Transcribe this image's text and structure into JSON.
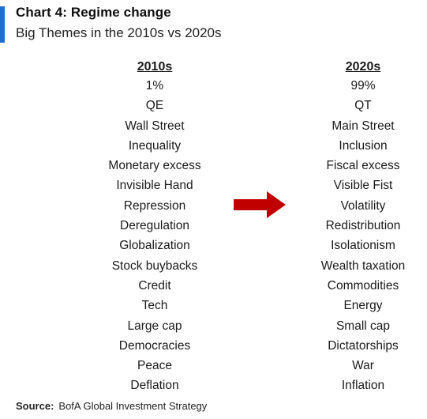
{
  "header": {
    "title": "Chart 4: Regime change",
    "subtitle": "Big Themes in the 2010s vs 2020s",
    "accent_color": "#1f6fd1"
  },
  "left_column": {
    "header": "2010s",
    "items": [
      "1%",
      "QE",
      "Wall Street",
      "Inequality",
      "Monetary excess",
      "Invisible Hand",
      "Repression",
      "Deregulation",
      "Globalization",
      "Stock buybacks",
      "Credit",
      "Tech",
      "Large cap",
      "Democracies",
      "Peace",
      "Deflation"
    ]
  },
  "right_column": {
    "header": "2020s",
    "items": [
      "99%",
      "QT",
      "Main Street",
      "Inclusion",
      "Fiscal excess",
      "Visible Fist",
      "Volatility",
      "Redistribution",
      "Isolationism",
      "Wealth taxation",
      "Commodities",
      "Energy",
      "Small cap",
      "Dictatorships",
      "War",
      "Inflation"
    ]
  },
  "arrow": {
    "icon": "right-arrow-icon",
    "color": "#c00000"
  },
  "footer": {
    "source_label": "Source:",
    "source_text": "BofA Global Investment Strategy"
  }
}
